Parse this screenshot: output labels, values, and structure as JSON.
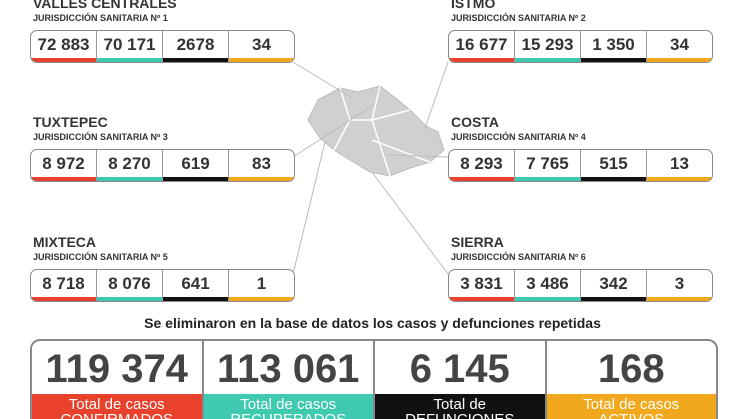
{
  "regions": [
    {
      "name": "VALLES CENTRALES",
      "subtitle": "JURISDICCIÓN SANITARIA Nº 1",
      "values": [
        "72 883",
        "70 171",
        "2678",
        "34"
      ]
    },
    {
      "name": "ISTMO",
      "subtitle": "JURISDICCIÓN SANITARIA Nº 2",
      "values": [
        "16 677",
        "15 293",
        "1 350",
        "34"
      ]
    },
    {
      "name": "TUXTEPEC",
      "subtitle": "JURISDICCIÓN SANITARIA Nº 3",
      "values": [
        "8 972",
        "8 270",
        "619",
        "83"
      ]
    },
    {
      "name": "COSTA",
      "subtitle": "JURISDICCIÓN SANITARIA Nº 4",
      "values": [
        "8 293",
        "7 765",
        "515",
        "13"
      ]
    },
    {
      "name": "MIXTECA",
      "subtitle": "JURISDICCIÓN SANITARIA Nº 5",
      "values": [
        "8 718",
        "8 076",
        "641",
        "1"
      ]
    },
    {
      "name": "SIERRA",
      "subtitle": "JURISDICCIÓN SANITARIA Nº 6",
      "values": [
        "3 831",
        "3 486",
        "342",
        "3"
      ]
    }
  ],
  "notice": "Se eliminaron en la base de datos los casos  y defunciones repetidas",
  "totals": [
    {
      "value": "119 374",
      "label": "Total de casos",
      "sublabel": "CONFIRMADOS"
    },
    {
      "value": "113 061",
      "label": "Total de casos",
      "sublabel": "RECUPERADOS"
    },
    {
      "value": "6 145",
      "label": "Total de",
      "sublabel": "DEFUNCIONES"
    },
    {
      "value": "168",
      "label": "Total de casos",
      "sublabel": "ACTIVOS"
    }
  ]
}
